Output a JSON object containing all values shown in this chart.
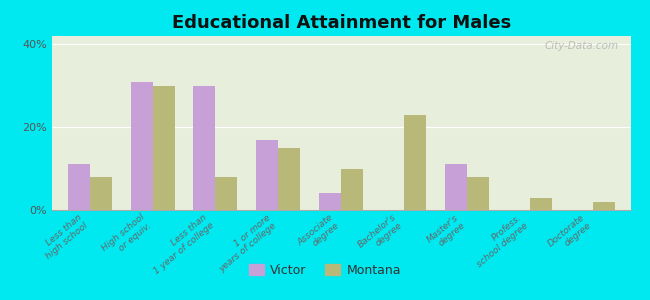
{
  "title": "Educational Attainment for Males",
  "categories": [
    "Less than\nhigh school",
    "High school\nor equiv.",
    "Less than\n1 year of college",
    "1 or more\nyears of college",
    "Associate\ndegree",
    "Bachelor's\ndegree",
    "Master's\ndegree",
    "Profess.\nschool degree",
    "Doctorate\ndegree"
  ],
  "victor": [
    11,
    31,
    30,
    17,
    4,
    0,
    11,
    0,
    0
  ],
  "montana": [
    8,
    30,
    8,
    15,
    10,
    23,
    8,
    3,
    2
  ],
  "victor_color": "#c8a0d8",
  "montana_color": "#b8b878",
  "plot_bg_color": "#e8eedc",
  "outer_background": "#00e8f0",
  "ylim": [
    0,
    42
  ],
  "yticks": [
    0,
    20,
    40
  ],
  "ytick_labels": [
    "0%",
    "20%",
    "40%"
  ],
  "legend_labels": [
    "Victor",
    "Montana"
  ],
  "bar_width": 0.35,
  "watermark": "City-Data.com"
}
